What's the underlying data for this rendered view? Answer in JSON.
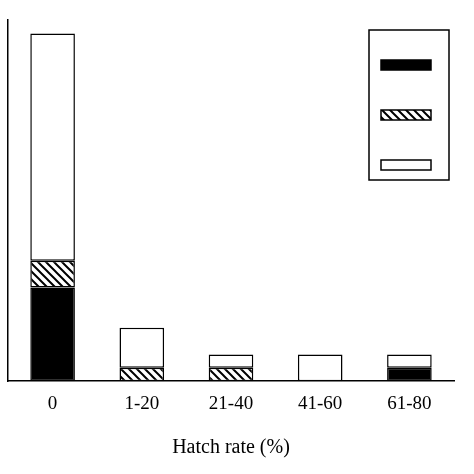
{
  "chart_data": {
    "type": "bar",
    "categories": [
      "0",
      "1-20",
      "21-40",
      "41-60",
      "61-80"
    ],
    "series": [
      {
        "color": "#000000",
        "values": [
          7,
          0,
          0,
          0,
          1
        ]
      },
      {
        "color": "#000000",
        "line_style": "hatch",
        "values": [
          2,
          1,
          1,
          0,
          0
        ]
      },
      {
        "color": "#ffffff",
        "values": [
          17,
          3,
          1,
          2,
          1
        ]
      }
    ],
    "x_label": "Hatch rate (%)",
    "ylim": [
      0,
      27
    ],
    "stacked": true,
    "legend": "upper right",
    "tick_labels": "x",
    "grid": false
  }
}
